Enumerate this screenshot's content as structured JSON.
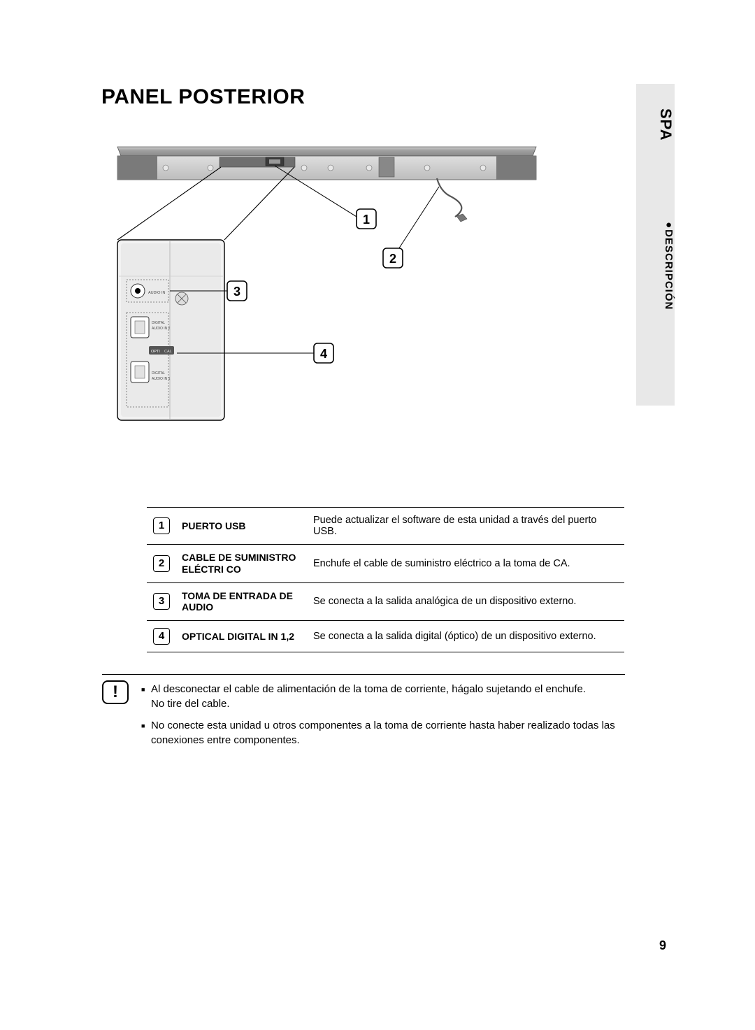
{
  "lang_tab": "SPA",
  "section_tab": "DESCRIPCIÓN",
  "title": "PANEL POSTERIOR",
  "diagram": {
    "callouts": [
      "1",
      "2",
      "3",
      "4"
    ],
    "port_labels": {
      "audio_in": "AUDIO IN",
      "digital_audio_in_2": "DIGITAL AUDIO IN 2",
      "optical": "OPTI CAL",
      "digital_audio_in_1": "DIGITAL AUDIO IN 1"
    },
    "colors": {
      "bar_body": "#b5b5b5",
      "bar_body_light": "#d6d6d6",
      "panel_fill": "#f2f2f2",
      "stroke": "#000000",
      "port_label": "#4a4a4a",
      "callout_fill": "#ffffff"
    }
  },
  "table": {
    "rows": [
      {
        "num": "1",
        "label": "PUERTO USB",
        "desc": "Puede actualizar el software de esta unidad a través del puerto USB."
      },
      {
        "num": "2",
        "label": "CABLE DE SUMINISTRO ELÉCTRI CO",
        "desc": "Enchufe el cable de suministro eléctrico a la toma de CA."
      },
      {
        "num": "3",
        "label": "TOMA DE ENTRADA DE AUDIO",
        "desc": "Se conecta a la salida analógica de un dispositivo externo."
      },
      {
        "num": "4",
        "label": "OPTICAL DIGITAL IN 1,2",
        "desc": "Se conecta a la salida digital (óptico) de un dispositivo externo."
      }
    ],
    "colors": {
      "border": "#000000",
      "label_text": "#000000"
    }
  },
  "notes": [
    "Al desconectar el cable de alimentación de la toma de corriente, hágalo sujetando el enchufe.\nNo tire del cable.",
    "No conecte esta unidad u otros componentes a la toma de corriente hasta haber realizado todas las conexiones entre componentes."
  ],
  "alert_glyph": "!",
  "page_number": "9"
}
